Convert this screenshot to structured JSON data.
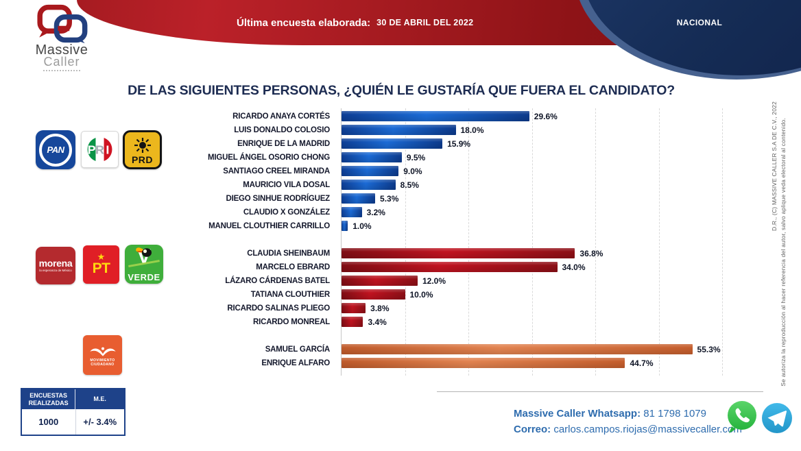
{
  "header": {
    "banner_label": "Última encuesta elaborada:",
    "banner_date": "30 DE ABRIL DEL 2022",
    "region_label": "NACIONAL"
  },
  "brand": {
    "line1": "Massive",
    "line2": "Caller"
  },
  "title": "DE LAS SIGUIENTES PERSONAS, ¿QUIÉN LE GUSTARÍA QUE FUERA EL CANDIDATO?",
  "chart_data": {
    "type": "bar",
    "orientation": "horizontal",
    "title": "DE LAS SIGUIENTES PERSONAS, ¿QUIÉN LE GUSTARÍA QUE FUERA EL CANDIDATO?",
    "unit": "%",
    "xlim": [
      0,
      60
    ],
    "gridline_step": 10,
    "grid": true,
    "groups": [
      {
        "name": "PAN-PRI-PRD",
        "bar_colors": [
          "#0d3e95",
          "#1b6bd6",
          "#0c3a8c"
        ],
        "items": [
          {
            "label": "RICARDO ANAYA CORTÉS",
            "value": 29.6
          },
          {
            "label": "LUIS DONALDO COLOSIO",
            "value": 18.0
          },
          {
            "label": "ENRIQUE DE LA MADRID",
            "value": 15.9
          },
          {
            "label": "MIGUEL ÁNGEL OSORIO CHONG",
            "value": 9.5
          },
          {
            "label": "SANTIAGO CREEL MIRANDA",
            "value": 9.0
          },
          {
            "label": "MAURICIO VILA DOSAL",
            "value": 8.5
          },
          {
            "label": "DIEGO SINHUE RODRÍGUEZ",
            "value": 5.3
          },
          {
            "label": "CLAUDIO X GONZÁLEZ",
            "value": 3.2
          },
          {
            "label": "MANUEL CLOUTHIER CARRILLO",
            "value": 1.0
          }
        ]
      },
      {
        "name": "MORENA-PT-VERDE",
        "bar_colors": [
          "#7f0d14",
          "#c11320",
          "#8c0f16"
        ],
        "items": [
          {
            "label": "CLAUDIA SHEINBAUM",
            "value": 36.8
          },
          {
            "label": "MARCELO EBRARD",
            "value": 34.0
          },
          {
            "label": "LÁZARO CÁRDENAS BATEL",
            "value": 12.0
          },
          {
            "label": "TATIANA CLOUTHIER",
            "value": 10.0
          },
          {
            "label": "RICARDO SALINAS PLIEGO",
            "value": 3.8
          },
          {
            "label": "RICARDO MONREAL",
            "value": 3.4
          }
        ]
      },
      {
        "name": "MOVIMIENTO CIUDADANO",
        "bar_colors": [
          "#c05b2b",
          "#e28350",
          "#c55e2d"
        ],
        "items": [
          {
            "label": "SAMUEL GARCÍA",
            "value": 55.3
          },
          {
            "label": "ENRIQUE ALFARO",
            "value": 44.7
          }
        ]
      }
    ]
  },
  "party_logos": {
    "pan": "PAN",
    "pri": "PRI",
    "prd": "PRD",
    "morena": "morena",
    "morena_tagline": "la esperanza de México",
    "pt": "PT",
    "verde_v": "V",
    "verde": "VERDE",
    "mc_line1": "MOVIMIENTO",
    "mc_line2": "CIUDADANO"
  },
  "stats_table": {
    "headers": [
      "ENCUESTAS REALIZADAS",
      "M.E."
    ],
    "values": [
      "1000",
      "+/- 3.4%"
    ]
  },
  "contact": {
    "whatsapp_label": "Massive Caller Whatsapp:",
    "whatsapp_number": " 81 1798 1079",
    "email_label": "Correo:",
    "email": " carlos.campos.riojas@massivecaller.com"
  },
  "copyright": {
    "line1": "D.R., (C) MASSIVE CALLER S.A DE C.V., 2022",
    "line2": "Se autoriza la reproducción al hacer referencia del autor, salvo aplique veda electoral al contenido."
  },
  "colors": {
    "banner_red": "#a91c22",
    "navy": "#152c55",
    "title_navy": "#1d2c52",
    "contact_blue": "#2e6cae",
    "whatsapp_green": "#27b43e",
    "telegram_blue": "#34a6de"
  }
}
